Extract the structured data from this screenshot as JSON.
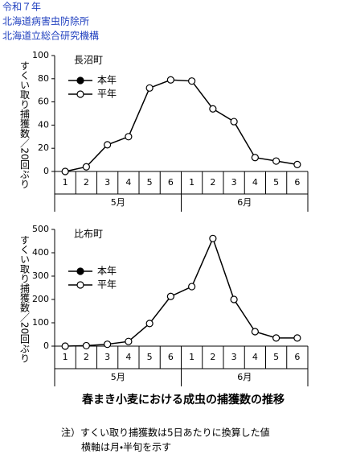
{
  "header": {
    "lines": [
      "令和７年",
      "北海道病害虫防除所",
      "北海道立総合研究機構"
    ]
  },
  "chart_data": [
    {
      "type": "line",
      "title": "長沼町",
      "y_label": "すくい取り捕獲数／20回ぶり",
      "categories": [
        "1",
        "2",
        "3",
        "4",
        "5",
        "6",
        "1",
        "2",
        "3",
        "4",
        "5",
        "6"
      ],
      "category_groups": [
        "5月",
        "6月"
      ],
      "ylim": [
        0,
        100
      ],
      "yticks": [
        0,
        20,
        40,
        60,
        80,
        100
      ],
      "series": [
        {
          "name": "本年",
          "color": "#000000",
          "marker_fill": "#000000",
          "values": [
            null,
            null,
            null,
            null,
            null,
            null,
            null,
            null,
            null,
            null,
            null,
            null
          ]
        },
        {
          "name": "平年",
          "color": "#000000",
          "marker_fill": "#ffffff",
          "values": [
            0,
            4,
            23,
            30,
            72,
            79,
            78,
            54,
            43,
            12,
            9,
            6
          ]
        }
      ]
    },
    {
      "type": "line",
      "title": "比布町",
      "y_label": "すくい取り捕獲数／20回ぶり",
      "categories": [
        "1",
        "2",
        "3",
        "4",
        "5",
        "6",
        "1",
        "2",
        "3",
        "4",
        "5",
        "6"
      ],
      "category_groups": [
        "5月",
        "6月"
      ],
      "ylim": [
        0,
        500
      ],
      "yticks": [
        0,
        100,
        200,
        300,
        400,
        500
      ],
      "series": [
        {
          "name": "本年",
          "color": "#000000",
          "marker_fill": "#000000",
          "values": [
            null,
            null,
            null,
            null,
            null,
            null,
            null,
            null,
            null,
            null,
            null,
            null
          ]
        },
        {
          "name": "平年",
          "color": "#000000",
          "marker_fill": "#ffffff",
          "values": [
            0,
            2,
            8,
            20,
            97,
            213,
            255,
            461,
            200,
            62,
            35,
            35
          ]
        }
      ]
    }
  ],
  "footer": {
    "title": "春まき小麦における成虫の捕獲数の推移",
    "notes": [
      "注）すくい取り捕獲数は5日あたりに換算した値",
      "横軸は月・半旬を示す"
    ]
  }
}
